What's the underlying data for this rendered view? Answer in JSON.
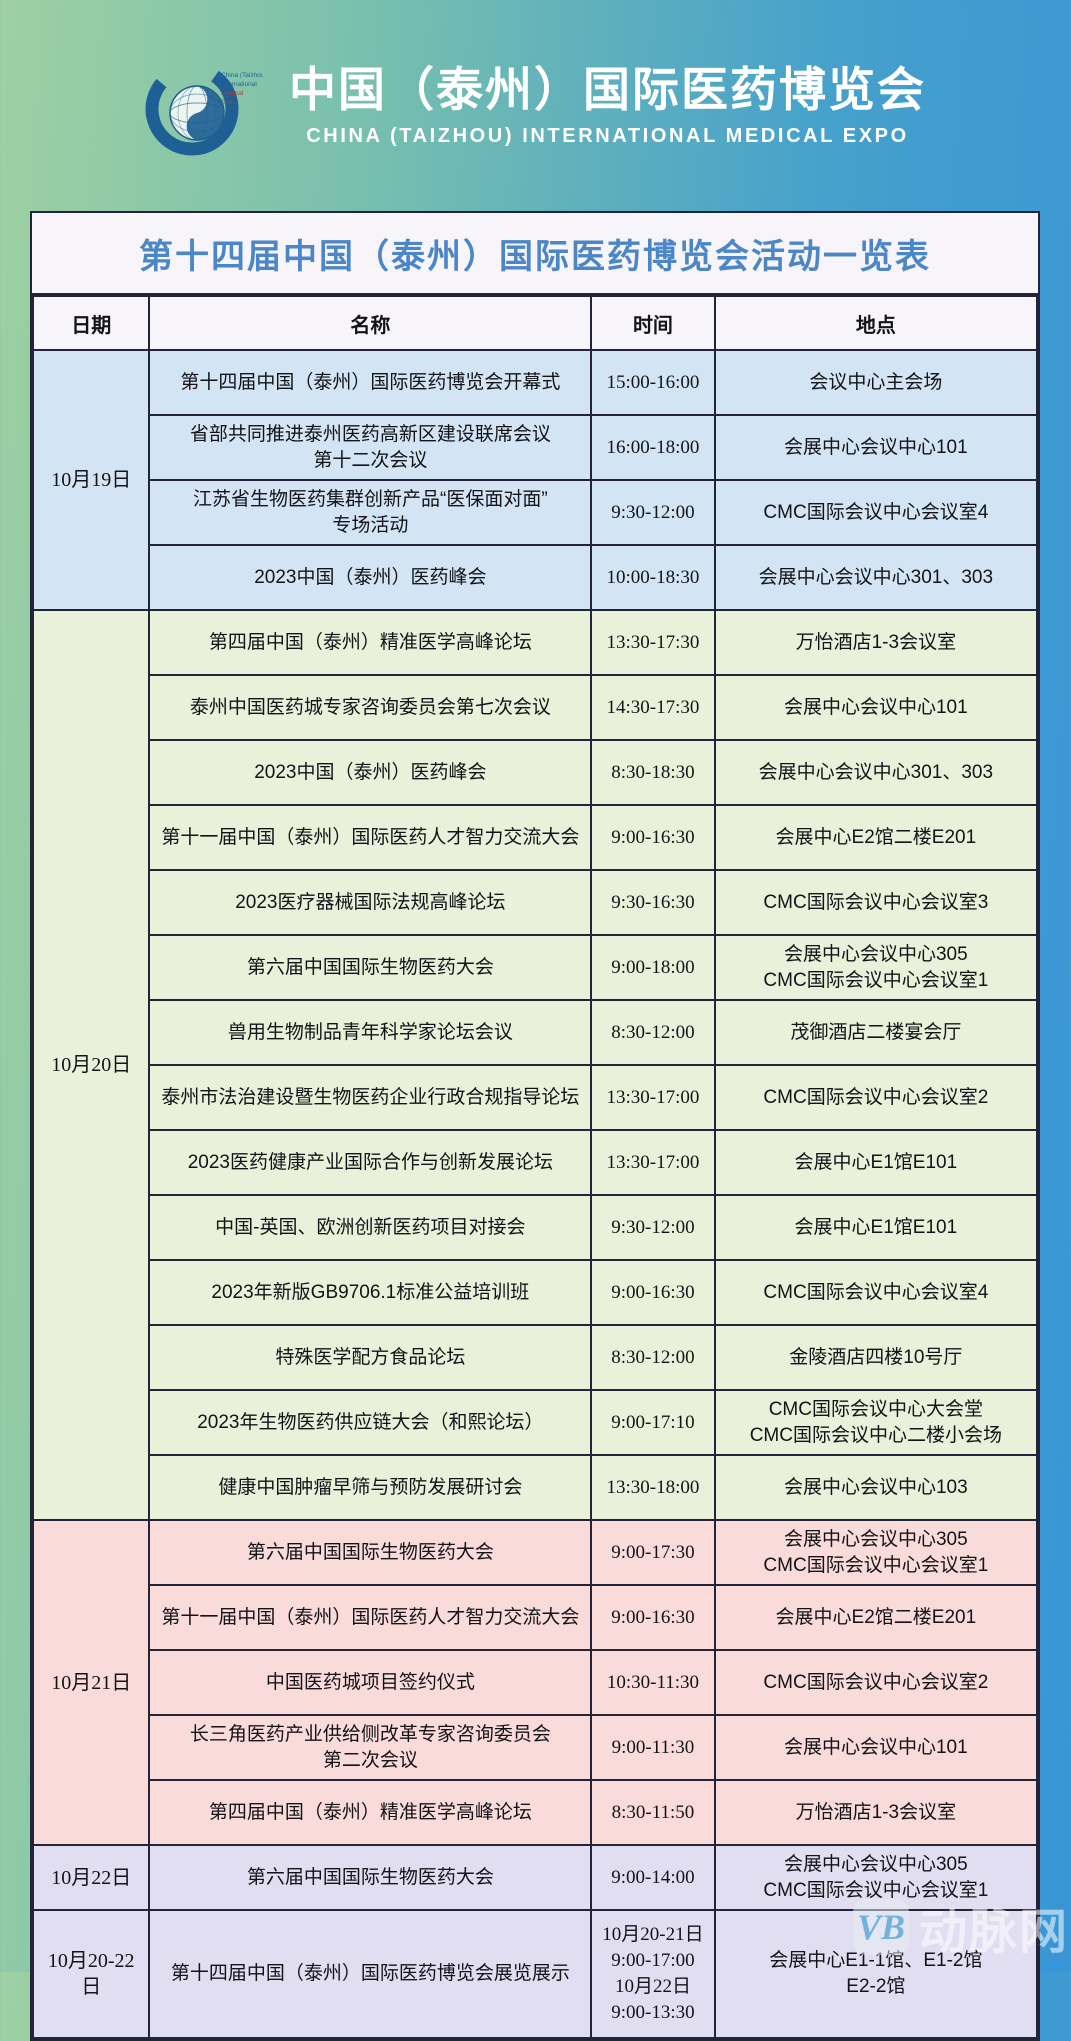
{
  "banner": {
    "logo": {
      "small_text_lines": [
        "China (Taizhou)",
        "International",
        "Medical",
        "Expo"
      ]
    },
    "title_cn": "中国（泰州）国际医药博览会",
    "subtitle_en": "CHINA (TAIZHOU) INTERNATIONAL MEDICAL EXPO"
  },
  "table": {
    "title": "第十四届中国（泰州）国际医药博览会活动一览表",
    "columns": [
      "日期",
      "名称",
      "时间",
      "地点"
    ],
    "groups": [
      {
        "date": "10月19日",
        "color": "#d3e4f5",
        "rows": [
          {
            "name": "第十四届中国（泰州）国际医药博览会开幕式",
            "time": "15:00-16:00",
            "location": "会议中心主会场"
          },
          {
            "name": "省部共同推进泰州医药高新区建设联席会议\n第十二次会议",
            "time": "16:00-18:00",
            "location": "会展中心会议中心101"
          },
          {
            "name": "江苏省生物医药集群创新产品“医保面对面”\n专场活动",
            "time": "9:30-12:00",
            "location": "CMC国际会议中心会议室4"
          },
          {
            "name": "2023中国（泰州）医药峰会",
            "time": "10:00-18:30",
            "location": "会展中心会议中心301、303"
          }
        ]
      },
      {
        "date": "10月20日",
        "color": "#eaf1da",
        "rows": [
          {
            "name": "第四届中国（泰州）精准医学高峰论坛",
            "time": "13:30-17:30",
            "location": "万怡酒店1-3会议室"
          },
          {
            "name": "泰州中国医药城专家咨询委员会第七次会议",
            "time": "14:30-17:30",
            "location": "会展中心会议中心101"
          },
          {
            "name": "2023中国（泰州）医药峰会",
            "time": "8:30-18:30",
            "location": "会展中心会议中心301、303"
          },
          {
            "name": "第十一届中国（泰州）国际医药人才智力交流大会",
            "time": "9:00-16:30",
            "location": "会展中心E2馆二楼E201"
          },
          {
            "name": "2023医疗器械国际法规高峰论坛",
            "time": "9:30-16:30",
            "location": "CMC国际会议中心会议室3"
          },
          {
            "name": "第六届中国国际生物医药大会",
            "time": "9:00-18:00",
            "location": "会展中心会议中心305\nCMC国际会议中心会议室1"
          },
          {
            "name": "兽用生物制品青年科学家论坛会议",
            "time": "8:30-12:00",
            "location": "茂御酒店二楼宴会厅"
          },
          {
            "name": "泰州市法治建设暨生物医药企业行政合规指导论坛",
            "time": "13:30-17:00",
            "location": "CMC国际会议中心会议室2"
          },
          {
            "name": "2023医药健康产业国际合作与创新发展论坛",
            "time": "13:30-17:00",
            "location": "会展中心E1馆E101"
          },
          {
            "name": "中国-英国、欧洲创新医药项目对接会",
            "time": "9:30-12:00",
            "location": "会展中心E1馆E101"
          },
          {
            "name": "2023年新版GB9706.1标准公益培训班",
            "time": "9:00-16:30",
            "location": "CMC国际会议中心会议室4"
          },
          {
            "name": "特殊医学配方食品论坛",
            "time": "8:30-12:00",
            "location": "金陵酒店四楼10号厅"
          },
          {
            "name": "2023年生物医药供应链大会（和熙论坛）",
            "time": "9:00-17:10",
            "location": "CMC国际会议中心大会堂\nCMC国际会议中心二楼小会场"
          },
          {
            "name": "健康中国肿瘤早筛与预防发展研讨会",
            "time": "13:30-18:00",
            "location": "会展中心会议中心103"
          }
        ]
      },
      {
        "date": "10月21日",
        "color": "#f9dbda",
        "rows": [
          {
            "name": "第六届中国国际生物医药大会",
            "time": "9:00-17:30",
            "location": "会展中心会议中心305\nCMC国际会议中心会议室1"
          },
          {
            "name": "第十一届中国（泰州）国际医药人才智力交流大会",
            "time": "9:00-16:30",
            "location": "会展中心E2馆二楼E201"
          },
          {
            "name": "中国医药城项目签约仪式",
            "time": "10:30-11:30",
            "location": "CMC国际会议中心会议室2"
          },
          {
            "name": "长三角医药产业供给侧改革专家咨询委员会\n第二次会议",
            "time": "9:00-11:30",
            "location": "会展中心会议中心101"
          },
          {
            "name": "第四届中国（泰州）精准医学高峰论坛",
            "time": "8:30-11:50",
            "location": "万怡酒店1-3会议室"
          }
        ]
      },
      {
        "date": "10月22日",
        "color": "#e0def0",
        "rows": [
          {
            "name": "第六届中国国际生物医药大会",
            "time": "9:00-14:00",
            "location": "会展中心会议中心305\nCMC国际会议中心会议室1"
          }
        ]
      },
      {
        "date": "10月20-22日",
        "color": "#e0def0",
        "rows": [
          {
            "name": "第十四届中国（泰州）国际医药博览会展览展示",
            "time": "10月20-21日\n9:00-17:00\n10月22日\n9:00-13:30",
            "location": "会展中心E1-1馆、E1-2馆\nE2-2馆",
            "tall": true
          }
        ]
      }
    ]
  },
  "watermark": {
    "logo_text": "VB",
    "site_name": "动脉网"
  },
  "colors": {
    "bg_gradient_left": "#9ed0a2",
    "bg_gradient_right": "#3896d6",
    "panel_bg": "#f7f5f9",
    "border": "#23233a",
    "table_title_text": "#4b86c7",
    "banner_text": "#ffffff",
    "logo_blue": "#1e6093",
    "group_oct19": "#d3e4f5",
    "group_oct20": "#eaf1da",
    "group_oct21": "#f9dbda",
    "group_oct22": "#e0def0"
  }
}
